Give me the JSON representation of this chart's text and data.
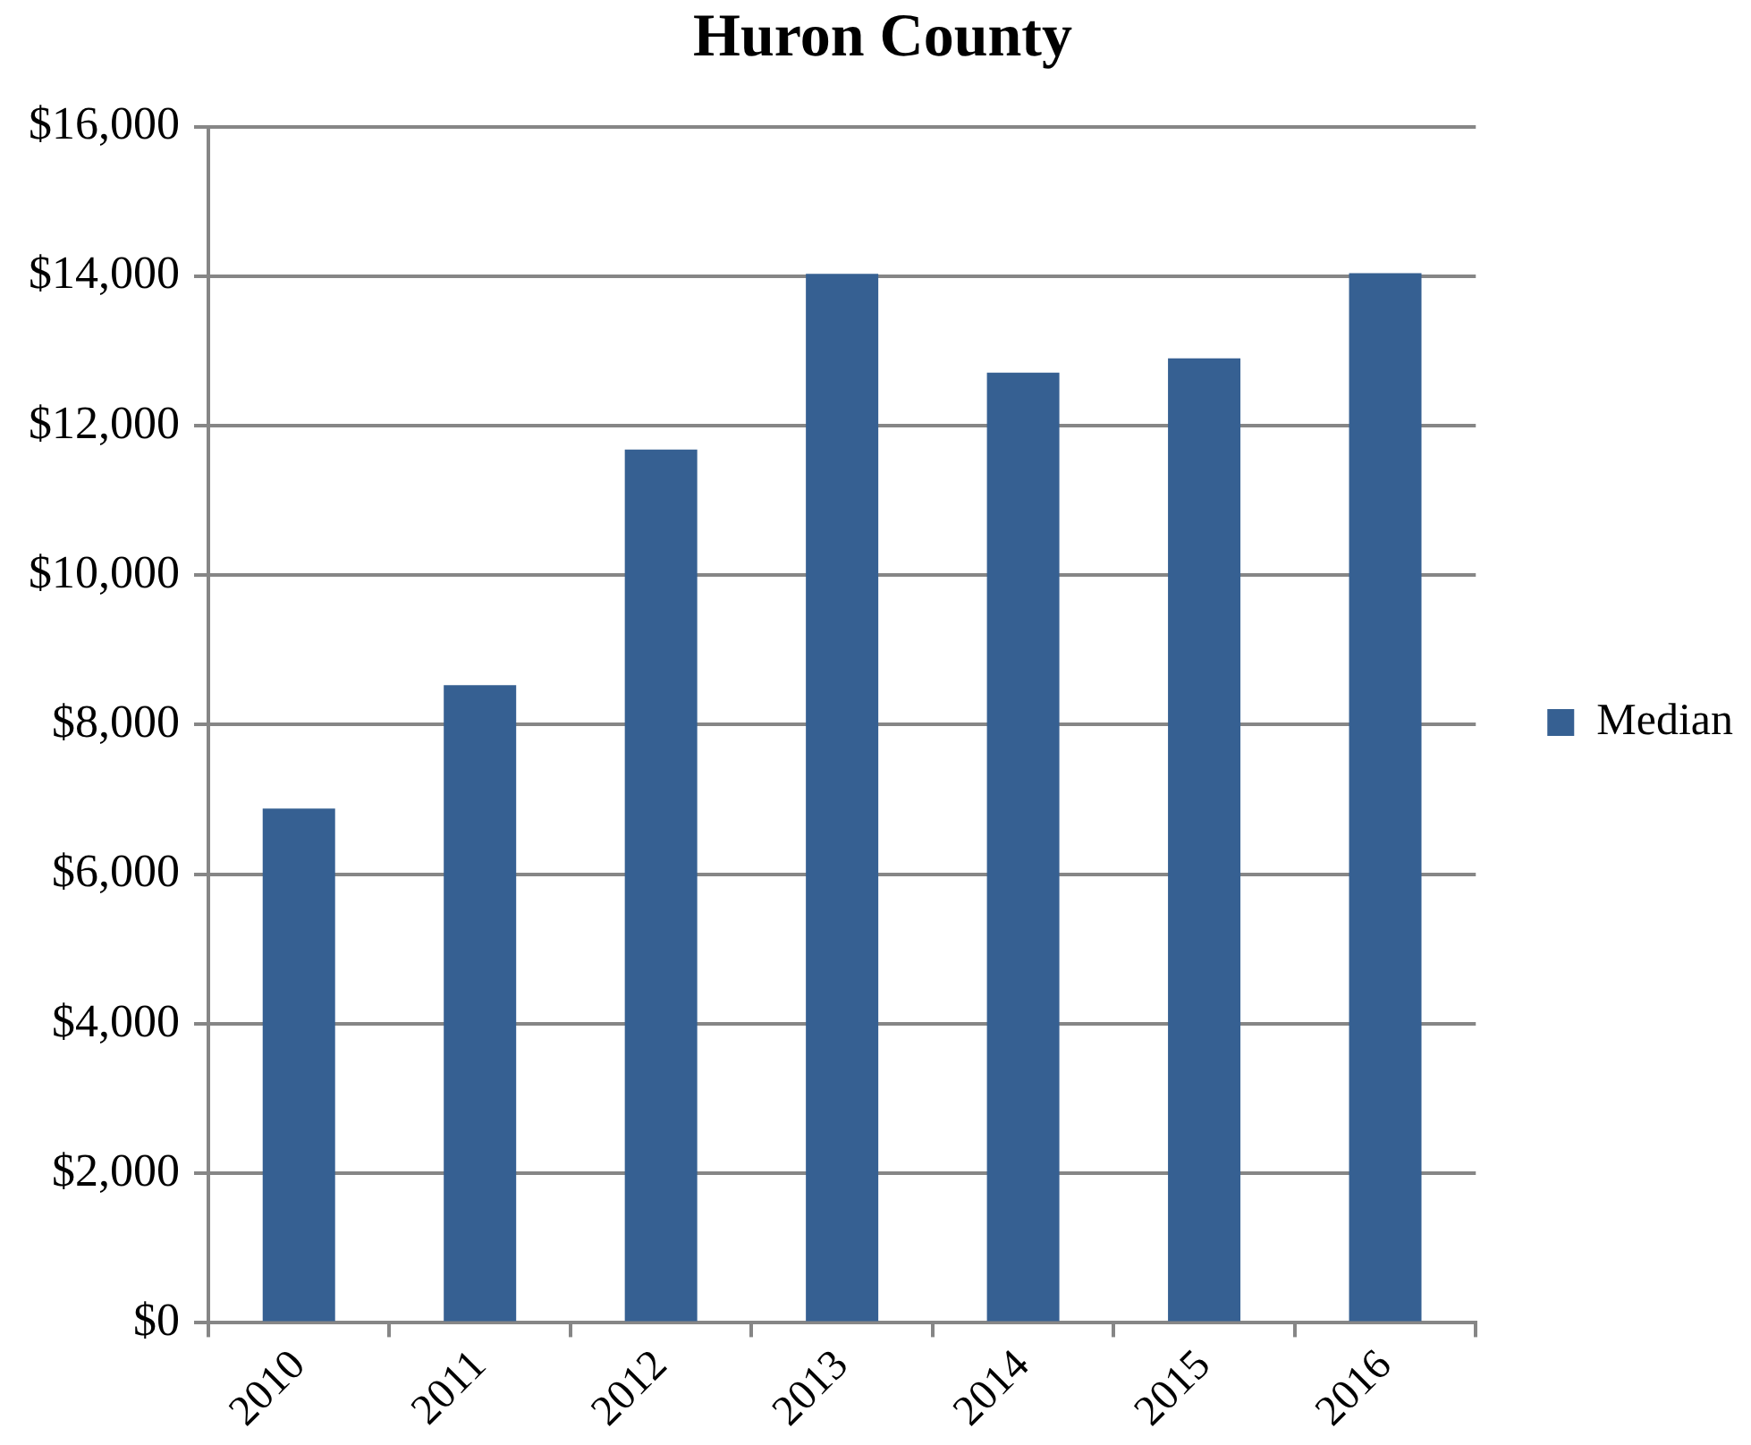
{
  "chart_data": {
    "type": "bar",
    "title": "Huron County",
    "categories": [
      "2010",
      "2011",
      "2012",
      "2013",
      "2014",
      "2015",
      "2016"
    ],
    "series": [
      {
        "name": "Median",
        "color": "#366092",
        "values": [
          6880,
          8530,
          11680,
          14030,
          12710,
          12900,
          14040
        ]
      }
    ],
    "ylim": [
      0,
      16000
    ],
    "yticks": [
      {
        "value": 0,
        "label": "$0"
      },
      {
        "value": 2000,
        "label": "$2,000"
      },
      {
        "value": 4000,
        "label": "$4,000"
      },
      {
        "value": 6000,
        "label": "$6,000"
      },
      {
        "value": 8000,
        "label": "$8,000"
      },
      {
        "value": 10000,
        "label": "$10,000"
      },
      {
        "value": 12000,
        "label": "$12,000"
      },
      {
        "value": 14000,
        "label": "$14,000"
      },
      {
        "value": 16000,
        "label": "$16,000"
      }
    ],
    "grid": "y",
    "legend": "right"
  }
}
